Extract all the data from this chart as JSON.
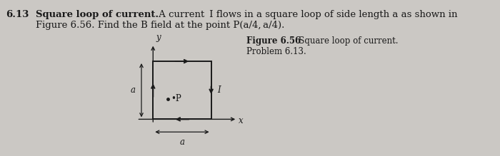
{
  "background_color": "#cbc8c4",
  "text_color": "#1a1a1a",
  "title_number": "6.13",
  "title_bold": "Square loop of current.",
  "title_rest_line1": " A current  I flows in a square loop of side length a as shown in",
  "title_rest_line2": "Figure 6.56. Find the B field at the point P(a​/4, a​/4).",
  "fig_caption_bold": "Figure 6.56",
  "fig_caption_normal": "   Square loop of current.",
  "fig_caption_line2": "Problem 6.13.",
  "square_linewidth": 1.4,
  "arrow_color": "#1a1a1a",
  "current_label_I": "I",
  "label_a_side": "a",
  "label_a_bottom": "a",
  "label_x": "x",
  "label_y": "y",
  "P_dot_label": "•P",
  "fontsize_body": 9.5,
  "fontsize_diagram": 8.5
}
